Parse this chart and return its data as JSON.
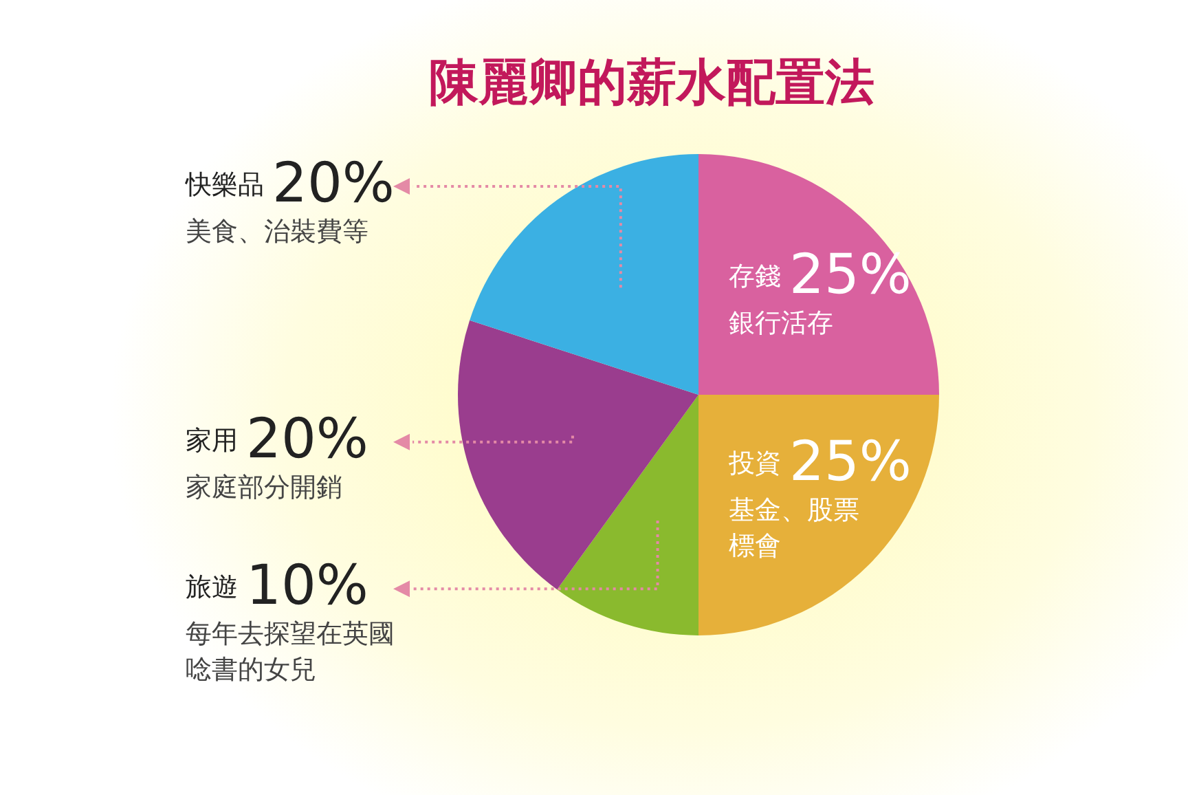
{
  "chart_data": {
    "type": "pie",
    "title": "陳麗卿的薪水配置法",
    "categories": [
      "存錢",
      "投資",
      "旅遊",
      "家用",
      "快樂品"
    ],
    "values": [
      25,
      25,
      10,
      20,
      20
    ],
    "value_labels": [
      "25%",
      "25%",
      "10%",
      "20%",
      "20%"
    ],
    "colors": [
      "#d9619f",
      "#e6b03a",
      "#8aba2e",
      "#9a3d8e",
      "#3bb0e3"
    ],
    "annotations": [
      "銀行活存",
      "基金、股票標會",
      "每年去探望在英國唸書的女兒",
      "家庭部分開銷",
      "美食、治裝費等"
    ]
  }
}
